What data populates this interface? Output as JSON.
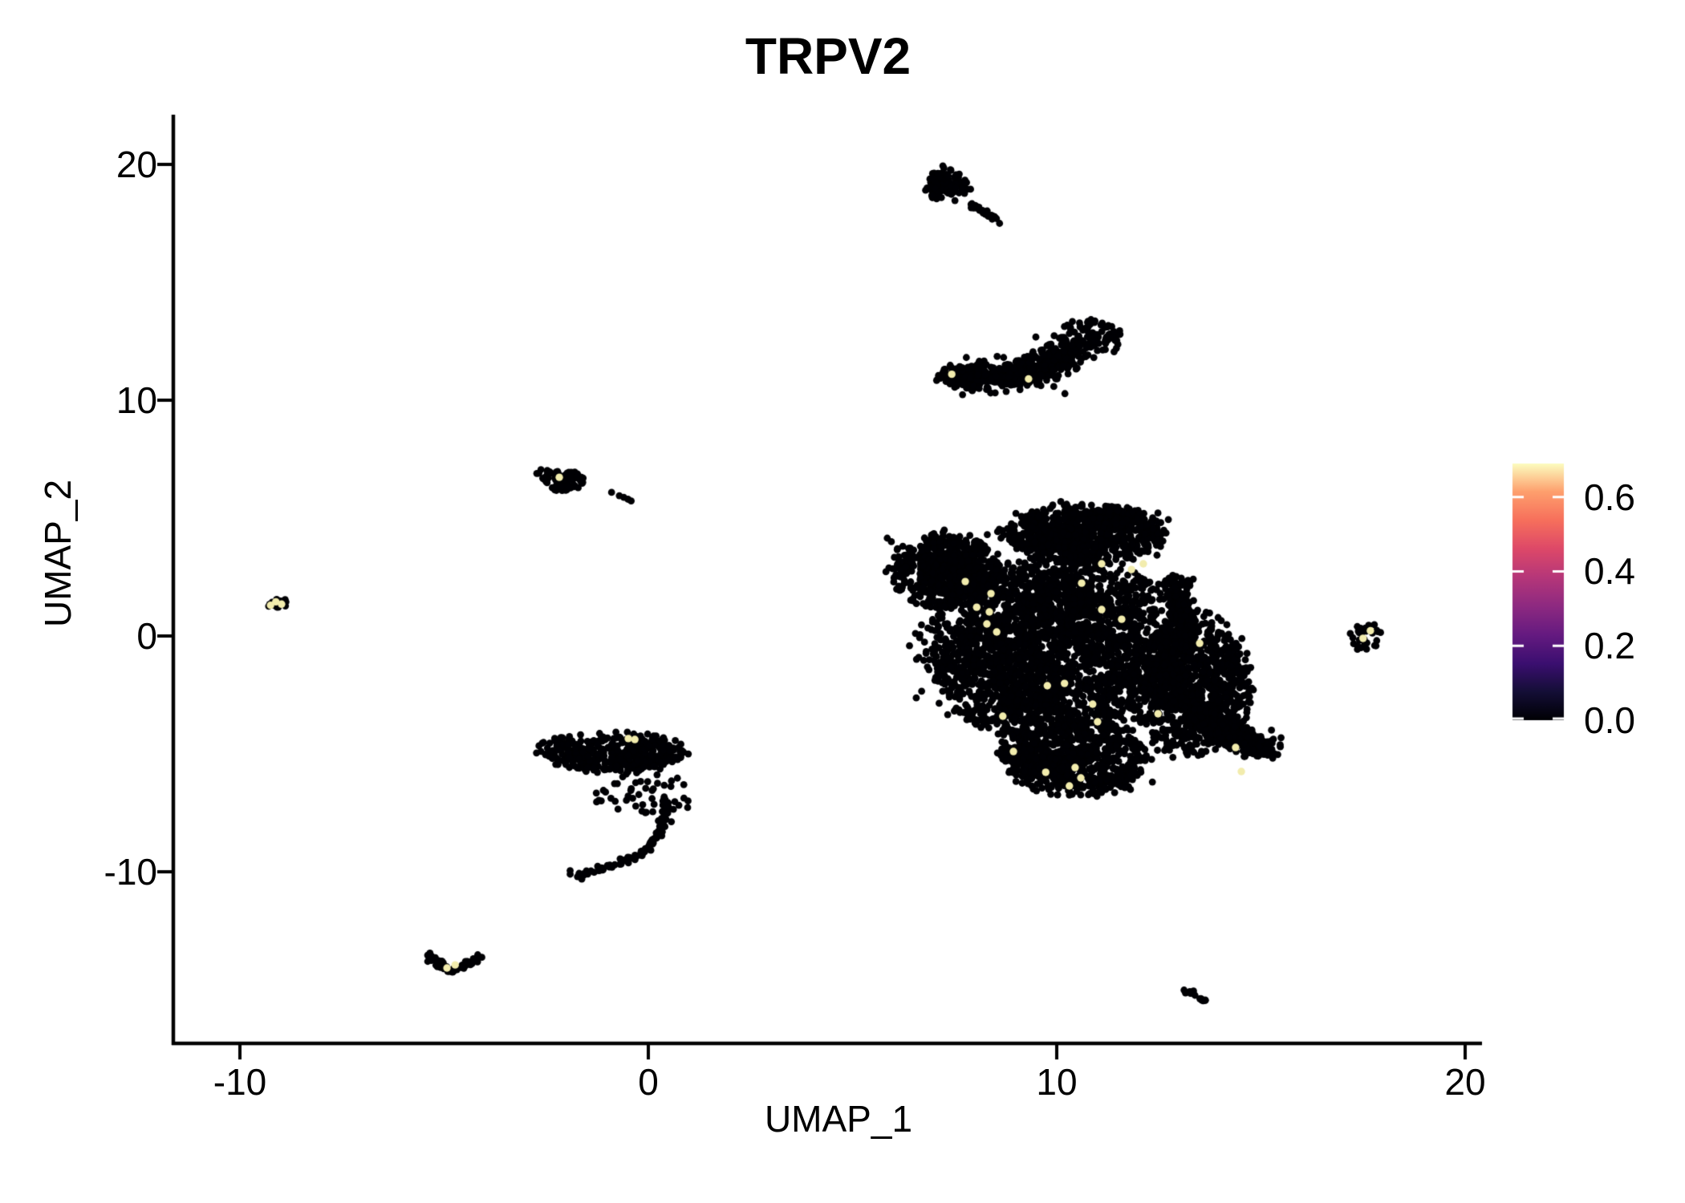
{
  "title": "TRPV2",
  "axes": {
    "x": {
      "label": "UMAP_1",
      "ticks": [
        {
          "value": -10,
          "label": "-10"
        },
        {
          "value": 0,
          "label": "0"
        },
        {
          "value": 10,
          "label": "10"
        },
        {
          "value": 20,
          "label": "20"
        }
      ]
    },
    "y": {
      "label": "UMAP_2",
      "ticks": [
        {
          "value": 20,
          "label": "20"
        },
        {
          "value": 10,
          "label": "10"
        },
        {
          "value": 0,
          "label": "0"
        },
        {
          "value": -10,
          "label": "-10"
        }
      ]
    }
  },
  "legend": {
    "min": 0,
    "max": 0.69,
    "ticks": [
      {
        "value": 0.6,
        "label": "0.6"
      },
      {
        "value": 0.4,
        "label": "0.4"
      },
      {
        "value": 0.2,
        "label": "0.2"
      },
      {
        "value": 0.0,
        "label": "0.0"
      }
    ],
    "gradient_stops": [
      {
        "t": 0.0,
        "color": "#000004"
      },
      {
        "t": 0.11,
        "color": "#140e36"
      },
      {
        "t": 0.22,
        "color": "#3b0f70"
      },
      {
        "t": 0.33,
        "color": "#641a80"
      },
      {
        "t": 0.44,
        "color": "#8c2981"
      },
      {
        "t": 0.56,
        "color": "#b73779"
      },
      {
        "t": 0.67,
        "color": "#de4968"
      },
      {
        "t": 0.78,
        "color": "#f7705c"
      },
      {
        "t": 0.89,
        "color": "#fe9f6d"
      },
      {
        "t": 1.0,
        "color": "#fcfdbf"
      }
    ]
  },
  "colors": {
    "axis": "#000000",
    "background": "#ffffff",
    "legend_tick": "#ffffff"
  },
  "chart_data": {
    "type": "scatter",
    "title": "TRPV2",
    "xlabel": "UMAP_1",
    "ylabel": "UMAP_2",
    "xlim": [
      -11.6,
      20.4
    ],
    "ylim": [
      -17.3,
      22.1
    ],
    "x_ticks": [
      -10,
      0,
      10,
      20
    ],
    "y_ticks": [
      20,
      10,
      0,
      -10
    ],
    "grid": false,
    "legend_position": "right",
    "point_radius_px": 4.4,
    "point_color_low": "#000004",
    "point_color_high": "#f2ecad",
    "clusters": [
      {
        "name": "top-comet-head",
        "type": "ellipse",
        "cx": 7.35,
        "cy": 19.1,
        "rx": 0.55,
        "ry": 0.75,
        "count": 140,
        "clumpy": true
      },
      {
        "name": "top-comet-tail",
        "type": "streak",
        "x1": 7.9,
        "y1": 18.35,
        "x2": 8.5,
        "y2": 17.7,
        "width": 0.2,
        "count": 35
      },
      {
        "name": "crescent",
        "type": "curve",
        "p0": [
          7.15,
          11.15
        ],
        "p1": [
          9.3,
          10.2
        ],
        "p2": [
          11.2,
          13.25
        ],
        "width": 0.85,
        "width_end": 1.6,
        "count": 560
      },
      {
        "name": "small-left-cluster",
        "type": "ellipse",
        "cx": -2.07,
        "cy": 6.6,
        "rx": 0.5,
        "ry": 0.45,
        "count": 80,
        "clumpy": false
      },
      {
        "name": "small-left-lobe",
        "type": "ellipse",
        "cx": -2.52,
        "cy": 6.93,
        "rx": 0.18,
        "ry": 0.13,
        "count": 8,
        "clumpy": false
      },
      {
        "name": "tiny-far-left-cluster",
        "type": "ellipse",
        "cx": -9.1,
        "cy": 1.42,
        "rx": 0.24,
        "ry": 0.3,
        "count": 13,
        "clumpy": false
      },
      {
        "name": "left-band",
        "type": "ellipse",
        "cx": -0.94,
        "cy": -4.9,
        "rx": 1.82,
        "ry": 0.87,
        "count": 430,
        "clumpy": true
      },
      {
        "name": "left-band-scatter",
        "type": "box",
        "x1": -1.3,
        "y1": -7.5,
        "x2": 1.05,
        "y2": -5.5,
        "count": 55
      },
      {
        "name": "left-hook",
        "type": "curve",
        "p0": [
          0.45,
          -6.9
        ],
        "p1": [
          0.55,
          -9.6
        ],
        "p2": [
          -1.95,
          -10.15
        ],
        "width": 0.25,
        "width_end": 0.3,
        "count": 110
      },
      {
        "name": "main-blob-left-arm",
        "type": "ellipse",
        "cx": 7.25,
        "cy": 2.7,
        "rx": 1.35,
        "ry": 1.6,
        "count": 800,
        "clumpy": true
      },
      {
        "name": "main-blob-top-lobe",
        "type": "ellipse",
        "cx": 10.7,
        "cy": 4.3,
        "rx": 2.0,
        "ry": 1.3,
        "count": 950,
        "clumpy": true
      },
      {
        "name": "main-blob-core",
        "type": "ellipse",
        "cx": 10.1,
        "cy": -0.6,
        "rx": 3.35,
        "ry": 4.0,
        "count": 2900,
        "clumpy": true
      },
      {
        "name": "main-blob-bottom-lobe",
        "type": "ellipse",
        "cx": 10.4,
        "cy": -5.2,
        "rx": 1.8,
        "ry": 1.6,
        "count": 800,
        "clumpy": true
      },
      {
        "name": "main-blob-right-mass",
        "type": "ellipse",
        "cx": 13.3,
        "cy": -2.0,
        "rx": 1.5,
        "ry": 3.1,
        "count": 900,
        "clumpy": true
      },
      {
        "name": "main-blob-right-wing",
        "type": "streak",
        "x1": 13.4,
        "y1": -3.3,
        "x2": 15.15,
        "y2": -4.9,
        "width": 0.95,
        "count": 380
      },
      {
        "name": "main-blob-right-protrusion",
        "type": "streak",
        "x1": 12.9,
        "y1": 2.5,
        "x2": 13.2,
        "y2": 0.3,
        "width": 0.55,
        "count": 150
      },
      {
        "name": "small-right-cluster",
        "type": "ellipse",
        "cx": 17.56,
        "cy": -0.02,
        "rx": 0.4,
        "ry": 0.63,
        "count": 30,
        "clumpy": false
      },
      {
        "name": "bottom-left-v-left",
        "type": "streak",
        "x1": -5.4,
        "y1": -13.55,
        "x2": -4.83,
        "y2": -14.25,
        "width": 0.28,
        "count": 32
      },
      {
        "name": "bottom-left-v-right",
        "type": "streak",
        "x1": -4.83,
        "y1": -14.25,
        "x2": -4.09,
        "y2": -13.6,
        "width": 0.24,
        "count": 30
      },
      {
        "name": "bottom-right-dash",
        "type": "streak",
        "x1": 13.14,
        "y1": -14.97,
        "x2": 13.63,
        "y2": -15.51,
        "width": 0.16,
        "count": 16
      }
    ],
    "sparse_points": [
      [
        -0.9,
        6.09
      ],
      [
        -0.71,
        5.95
      ],
      [
        -0.6,
        5.88
      ],
      [
        -0.5,
        5.8
      ],
      [
        -0.42,
        5.73
      ],
      [
        9.1,
        10.45
      ],
      [
        10.2,
        10.28
      ],
      [
        8.1,
        10.5
      ],
      [
        5.85,
        4.15
      ],
      [
        8.3,
        4.3
      ],
      [
        10.1,
        5.7
      ],
      [
        9.0,
        5.2
      ],
      [
        11.5,
        5.3
      ],
      [
        5.95,
        4.0
      ],
      [
        6.1,
        3.7
      ],
      [
        8.6,
        17.5
      ],
      [
        10.31,
        -6.75
      ]
    ],
    "expressing_cells": [
      [
        7.43,
        11.1
      ],
      [
        9.31,
        10.9
      ],
      [
        -2.18,
        6.73
      ],
      [
        -9.12,
        1.45
      ],
      [
        -8.98,
        1.35
      ],
      [
        -9.25,
        1.3
      ],
      [
        -0.49,
        -4.35
      ],
      [
        -0.33,
        -4.39
      ],
      [
        7.76,
        2.31
      ],
      [
        8.39,
        1.8
      ],
      [
        8.04,
        1.22
      ],
      [
        8.35,
        1.02
      ],
      [
        8.29,
        0.51
      ],
      [
        8.53,
        0.17
      ],
      [
        8.68,
        -3.4
      ],
      [
        8.94,
        -4.9
      ],
      [
        9.73,
        -5.78
      ],
      [
        10.59,
        -6.02
      ],
      [
        10.45,
        -5.58
      ],
      [
        9.77,
        -2.11
      ],
      [
        10.19,
        -2.01
      ],
      [
        10.88,
        -2.89
      ],
      [
        11.0,
        -3.64
      ],
      [
        10.61,
        2.24
      ],
      [
        11.1,
        3.06
      ],
      [
        11.83,
        2.82
      ],
      [
        12.12,
        3.06
      ],
      [
        11.59,
        0.71
      ],
      [
        11.1,
        1.12
      ],
      [
        12.48,
        -3.3
      ],
      [
        13.5,
        -0.31
      ],
      [
        14.38,
        -4.73
      ],
      [
        14.52,
        -5.75
      ],
      [
        10.31,
        -6.36
      ],
      [
        17.68,
        0.22
      ],
      [
        17.5,
        -0.1
      ],
      [
        -4.93,
        -14.08
      ],
      [
        -4.73,
        -13.95
      ]
    ]
  }
}
